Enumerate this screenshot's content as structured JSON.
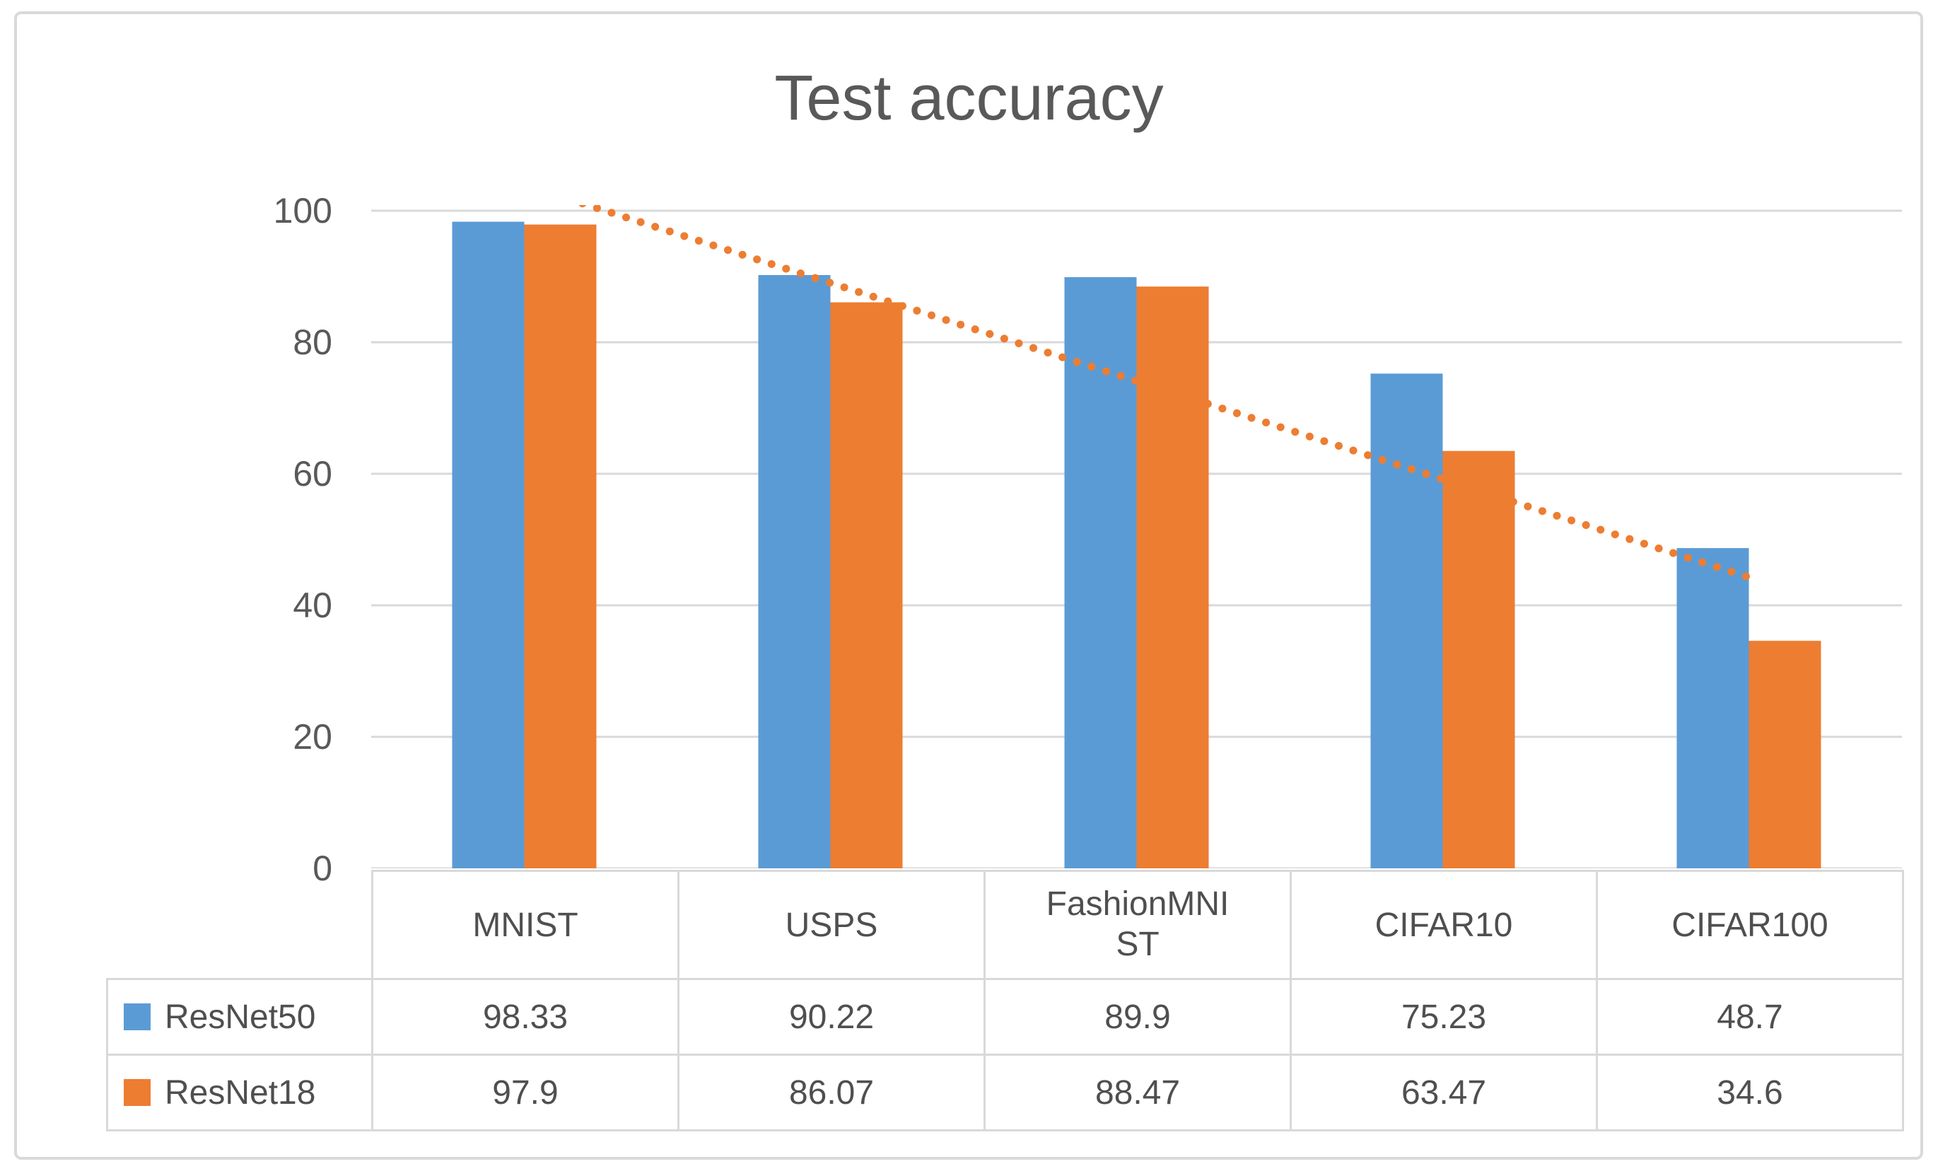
{
  "chart_data": {
    "type": "bar",
    "title": "Test accuracy",
    "categories": [
      "MNIST",
      "USPS",
      "FashionMNIST",
      "CIFAR10",
      "CIFAR100"
    ],
    "series": [
      {
        "name": "ResNet50",
        "color": "#5B9BD5",
        "values": [
          98.33,
          90.22,
          89.9,
          75.23,
          48.7
        ]
      },
      {
        "name": "ResNet18",
        "color": "#ED7D31",
        "values": [
          97.9,
          86.07,
          88.47,
          63.47,
          34.6
        ]
      }
    ],
    "trendline": {
      "series": "ResNet18",
      "type": "linear",
      "style": "dotted",
      "color": "#ED7D31"
    },
    "ylabel": "",
    "xlabel": "",
    "ylim": [
      0,
      100
    ],
    "yticks": [
      0,
      20,
      40,
      60,
      80,
      100
    ],
    "grid": true,
    "legend_position": "data-table-left",
    "data_table_shown": true
  },
  "colors": {
    "series_resnet50": "#5B9BD5",
    "series_resnet18": "#ED7D31",
    "gridline": "#D9D9D9",
    "table_border": "#D9D9D9",
    "outer_border": "#D9D9D9",
    "title_text": "#595959",
    "axis_text": "#595959",
    "table_text": "#4F4F4F"
  }
}
